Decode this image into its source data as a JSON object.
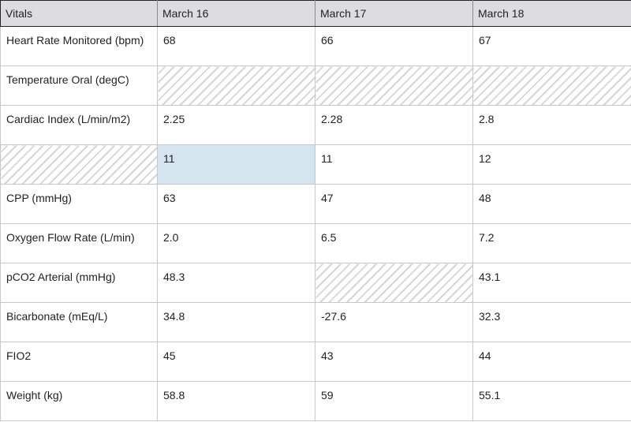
{
  "table": {
    "headers": [
      "Vitals",
      "March 16",
      "March 17",
      "March 18"
    ],
    "rows": [
      [
        "Heart Rate Monitored (bpm)",
        "68",
        "66",
        "67"
      ],
      [
        "Temperature Oral (degC)",
        "",
        "",
        ""
      ],
      [
        "Cardiac Index (L/min/m2)",
        "2.25",
        "2.28",
        "2.8"
      ],
      [
        "",
        "11",
        "11",
        "12"
      ],
      [
        "CPP (mmHg)",
        "63",
        "47",
        "48"
      ],
      [
        "Oxygen Flow Rate (L/min)",
        "2.0",
        "6.5",
        "7.2"
      ],
      [
        "pCO2 Arterial (mmHg)",
        "48.3",
        "",
        "43.1"
      ],
      [
        "Bicarbonate (mEq/L)",
        "34.8",
        "-27.6",
        "32.3"
      ],
      [
        "FIO2",
        "45",
        "43",
        "44"
      ],
      [
        "Weight (kg)",
        "58.8",
        "59",
        "55.1"
      ]
    ],
    "selected_cell": "row 4, March 16",
    "colors": {
      "header_bg": "#dddde1",
      "selected_bg": "#d4e5ef",
      "blank_hatch": "#d6d6da"
    }
  }
}
